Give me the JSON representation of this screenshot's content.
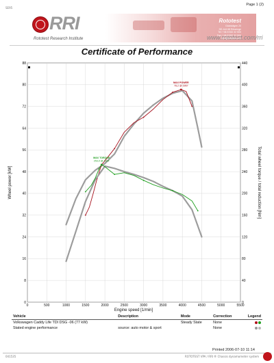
{
  "header": {
    "top_mark": "SE95",
    "page_label": "Page 1 (2)",
    "brand": "RRI",
    "brand_sub": "Rototest Research Institute",
    "website": "www.rototest.com/rri",
    "company": "Rototest",
    "address_lines": [
      "Gäddvägen 20",
      "SE-144 68 Rönninge",
      "Tel: +46 8 532 32 500",
      "Fax: +46 8 532 32 509",
      "info@rototest.com"
    ]
  },
  "title": "Certificate of Performance",
  "chart_data": {
    "type": "line",
    "xlabel": "Engine speed [1/min]",
    "ylabel_left": "Wheel power [kW]",
    "ylabel_right": "Total wheel torque / total reduction [Nm]",
    "xlim": [
      0,
      5500
    ],
    "ylim_left": [
      0,
      88
    ],
    "ylim_right": [
      0,
      440
    ],
    "x_ticks": [
      0,
      500,
      1000,
      1500,
      2000,
      2500,
      3000,
      3500,
      4000,
      4500,
      5000,
      5500
    ],
    "y_ticks_left": [
      0,
      8,
      16,
      24,
      32,
      40,
      48,
      56,
      64,
      72,
      80,
      88
    ],
    "y_ticks_right": [
      0,
      40,
      80,
      120,
      160,
      200,
      240,
      280,
      320,
      360,
      400,
      440
    ],
    "grid": true,
    "annotations": [
      {
        "label": "MAX POWER",
        "value_text": "78,2 @ 3967",
        "x": 3967,
        "y_left": 78.2,
        "color": "#b0101a"
      },
      {
        "label": "MAX TORQUE",
        "value_text": "253,0 @ 1914",
        "x": 1914,
        "y_right": 253.0,
        "color": "#1e9e1e"
      }
    ],
    "series": [
      {
        "axis": "left",
        "color": "#9c9c9c",
        "width": 2.2,
        "dashed": true,
        "points": [
          [
            1000,
            28.5
          ],
          [
            1250,
            38
          ],
          [
            1500,
            45
          ],
          [
            1750,
            48.5
          ],
          [
            2000,
            51
          ],
          [
            2250,
            54.5
          ],
          [
            2500,
            61
          ],
          [
            2750,
            65.5
          ],
          [
            3000,
            69.5
          ],
          [
            3250,
            72.5
          ],
          [
            3500,
            75
          ],
          [
            3750,
            76.8
          ],
          [
            4000,
            77.8
          ],
          [
            4250,
            74
          ],
          [
            4400,
            64
          ],
          [
            4500,
            57
          ]
        ]
      },
      {
        "axis": "left",
        "color": "#a6101c",
        "width": 0.9,
        "markers": true,
        "points": [
          [
            1500,
            32
          ],
          [
            1600,
            35
          ],
          [
            1700,
            40
          ],
          [
            1800,
            45.5
          ],
          [
            1914,
            50.5
          ],
          [
            2000,
            52
          ],
          [
            2250,
            56.5
          ],
          [
            2500,
            62.5
          ],
          [
            2750,
            66
          ],
          [
            3000,
            68
          ],
          [
            3250,
            71
          ],
          [
            3500,
            74.5
          ],
          [
            3750,
            77.2
          ],
          [
            3967,
            78.2
          ],
          [
            4100,
            77.5
          ],
          [
            4250,
            72
          ]
        ]
      },
      {
        "axis": "right",
        "color": "#9c9c9c",
        "width": 2.2,
        "dashed": true,
        "points": [
          [
            1000,
            75
          ],
          [
            1250,
            130
          ],
          [
            1500,
            185
          ],
          [
            1750,
            225
          ],
          [
            2000,
            250
          ],
          [
            2250,
            246
          ],
          [
            2500,
            240
          ],
          [
            2750,
            235
          ],
          [
            3000,
            229
          ],
          [
            3250,
            222
          ],
          [
            3500,
            213
          ],
          [
            3750,
            205
          ],
          [
            4000,
            195
          ],
          [
            4250,
            170
          ],
          [
            4500,
            120
          ]
        ]
      },
      {
        "axis": "right",
        "color": "#1e9e1e",
        "width": 0.9,
        "markers": true,
        "points": [
          [
            1500,
            203
          ],
          [
            1650,
            215
          ],
          [
            1750,
            228
          ],
          [
            1850,
            245
          ],
          [
            1914,
            253
          ],
          [
            2000,
            249
          ],
          [
            2250,
            235
          ],
          [
            2500,
            238
          ],
          [
            2750,
            233
          ],
          [
            3000,
            224
          ],
          [
            3250,
            216
          ],
          [
            3500,
            210
          ],
          [
            3750,
            205
          ],
          [
            4000,
            198
          ],
          [
            4250,
            186
          ],
          [
            4400,
            168
          ]
        ]
      }
    ]
  },
  "table": {
    "headers": {
      "vehicle": "Vehicle",
      "description": "Description",
      "mode": "Mode",
      "correction": "Correction",
      "legend": "Legend"
    },
    "rows": [
      {
        "vehicle": "Volkswagen Caddy Life TDI DSG -06 (77 kW)",
        "description": "",
        "mode": "Steady State",
        "correction": "None",
        "legend_colors": [
          "#b0101a",
          "#1e9e1e"
        ]
      },
      {
        "vehicle": "Stated engine performance",
        "description": "source: auto motor & sport",
        "mode": "",
        "correction": "None",
        "legend_colors": [
          "#999999",
          "#bbbbbb"
        ]
      }
    ]
  },
  "footer": {
    "printed": "Printed 2006-07-10 11:14",
    "left_code": "041535",
    "right_text": "ROTOTEST VPA / RRI ® Chassis dynamometer system"
  }
}
